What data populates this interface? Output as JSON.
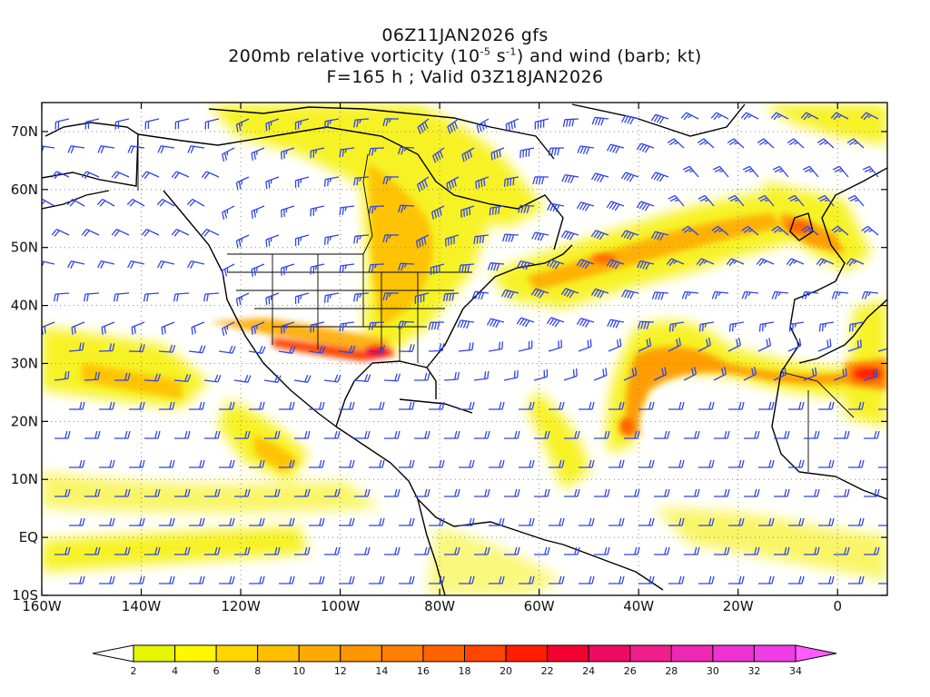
{
  "title": {
    "line1": "06Z11JAN2026 gfs",
    "line2_pre": "200mb relative vorticity (10",
    "line2_sup1": "-5",
    "line2_mid": " s",
    "line2_sup2": "-1",
    "line2_post": ") and wind (barb; kt)",
    "line3": "F=165 h ; Valid 03Z18JAN2026"
  },
  "map": {
    "lon_range": [
      -160,
      10
    ],
    "lat_range": [
      -10,
      75
    ],
    "lat_labels": [
      "70N",
      "60N",
      "50N",
      "40N",
      "30N",
      "20N",
      "10N",
      "EQ",
      "10S"
    ],
    "lat_values": [
      70,
      60,
      50,
      40,
      30,
      20,
      10,
      0,
      -10
    ],
    "lon_labels": [
      "160W",
      "140W",
      "120W",
      "100W",
      "80W",
      "60W",
      "40W",
      "20W",
      "0"
    ],
    "lon_values": [
      -160,
      -140,
      -120,
      -100,
      -80,
      -60,
      -40,
      -20,
      0
    ],
    "barb_color": "#3045e6",
    "coast_color": "#000000"
  },
  "colorbar": {
    "labels": [
      "2",
      "4",
      "6",
      "8",
      "10",
      "12",
      "14",
      "16",
      "18",
      "20",
      "22",
      "24",
      "26",
      "28",
      "30",
      "32",
      "34"
    ],
    "colors": [
      "#e6f500",
      "#fff700",
      "#ffd500",
      "#ffbf00",
      "#ffaa00",
      "#ff9500",
      "#ff7f00",
      "#ff6300",
      "#ff4500",
      "#ff1e00",
      "#f50032",
      "#ee0a64",
      "#ef1e8c",
      "#ee28b4",
      "#ee32d2",
      "#f03ce6"
    ]
  }
}
